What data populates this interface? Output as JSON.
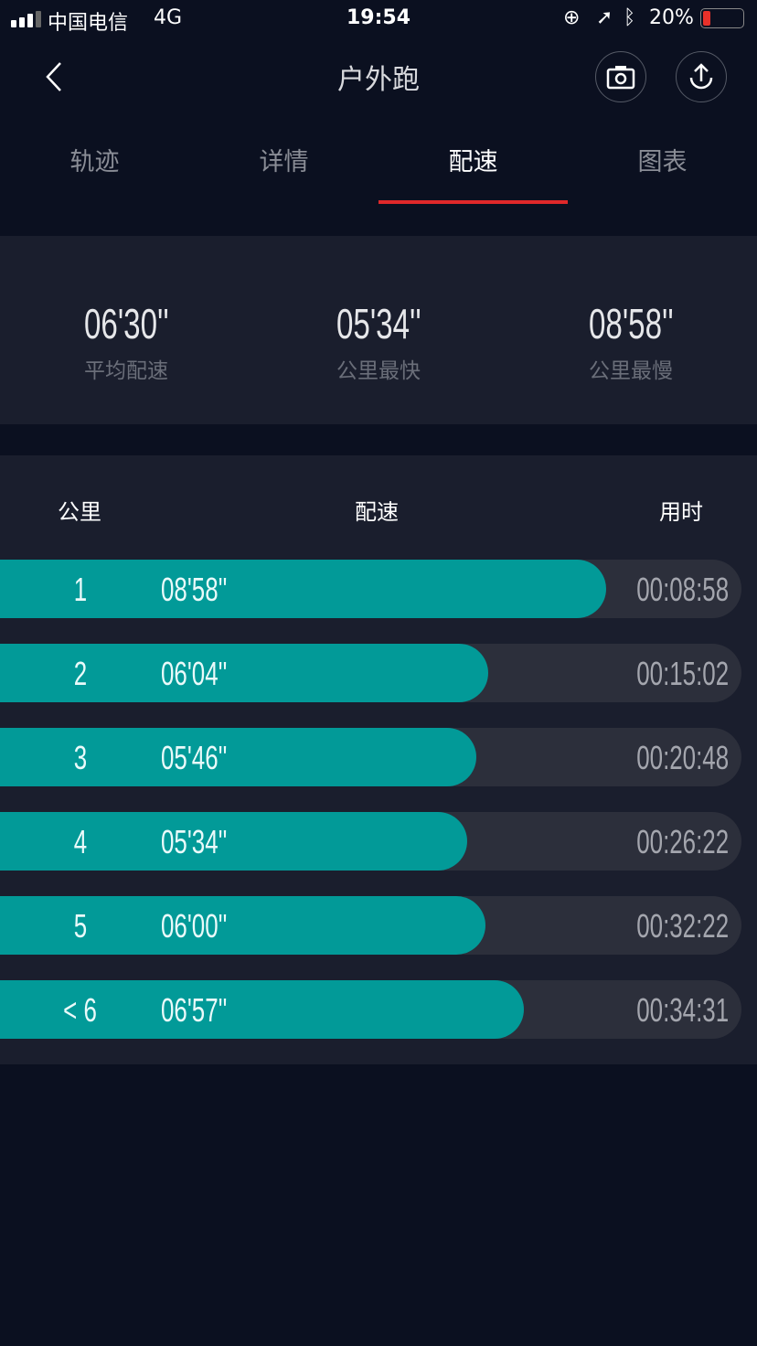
{
  "status_bar": {
    "carrier": "中国电信",
    "network": "4G",
    "time": "19:54",
    "battery": "20%",
    "battery_color": "#e8312a"
  },
  "nav": {
    "title": "户外跑",
    "back_icon": "chevron-left-icon",
    "camera_icon": "camera-icon",
    "share_icon": "upload-icon"
  },
  "tabs": [
    {
      "label": "轨迹"
    },
    {
      "label": "详情"
    },
    {
      "label": "配速",
      "active": true
    },
    {
      "label": "图表"
    }
  ],
  "accent": "#e0282a",
  "summary": [
    {
      "value": "06'30''",
      "label": "平均配速"
    },
    {
      "value": "05'34''",
      "label": "公里最快"
    },
    {
      "value": "08'58''",
      "label": "公里最慢"
    }
  ],
  "table": {
    "headers": {
      "km": "公里",
      "pace": "配速",
      "time": "用时"
    },
    "bar_color": "#029a98",
    "rows": [
      {
        "km": "1",
        "pace": "08'58''",
        "time": "00:08:58",
        "fill": 0.817
      },
      {
        "km": "2",
        "pace": "06'04''",
        "time": "00:15:02",
        "fill": 0.658
      },
      {
        "km": "3",
        "pace": "05'46''",
        "time": "00:20:48",
        "fill": 0.642
      },
      {
        "km": "4",
        "pace": "05'34''",
        "time": "00:26:22",
        "fill": 0.63
      },
      {
        "km": "5",
        "pace": "06'00''",
        "time": "00:32:22",
        "fill": 0.655
      },
      {
        "km": "< 6",
        "pace": "06'57''",
        "time": "00:34:31",
        "fill": 0.707
      }
    ]
  }
}
